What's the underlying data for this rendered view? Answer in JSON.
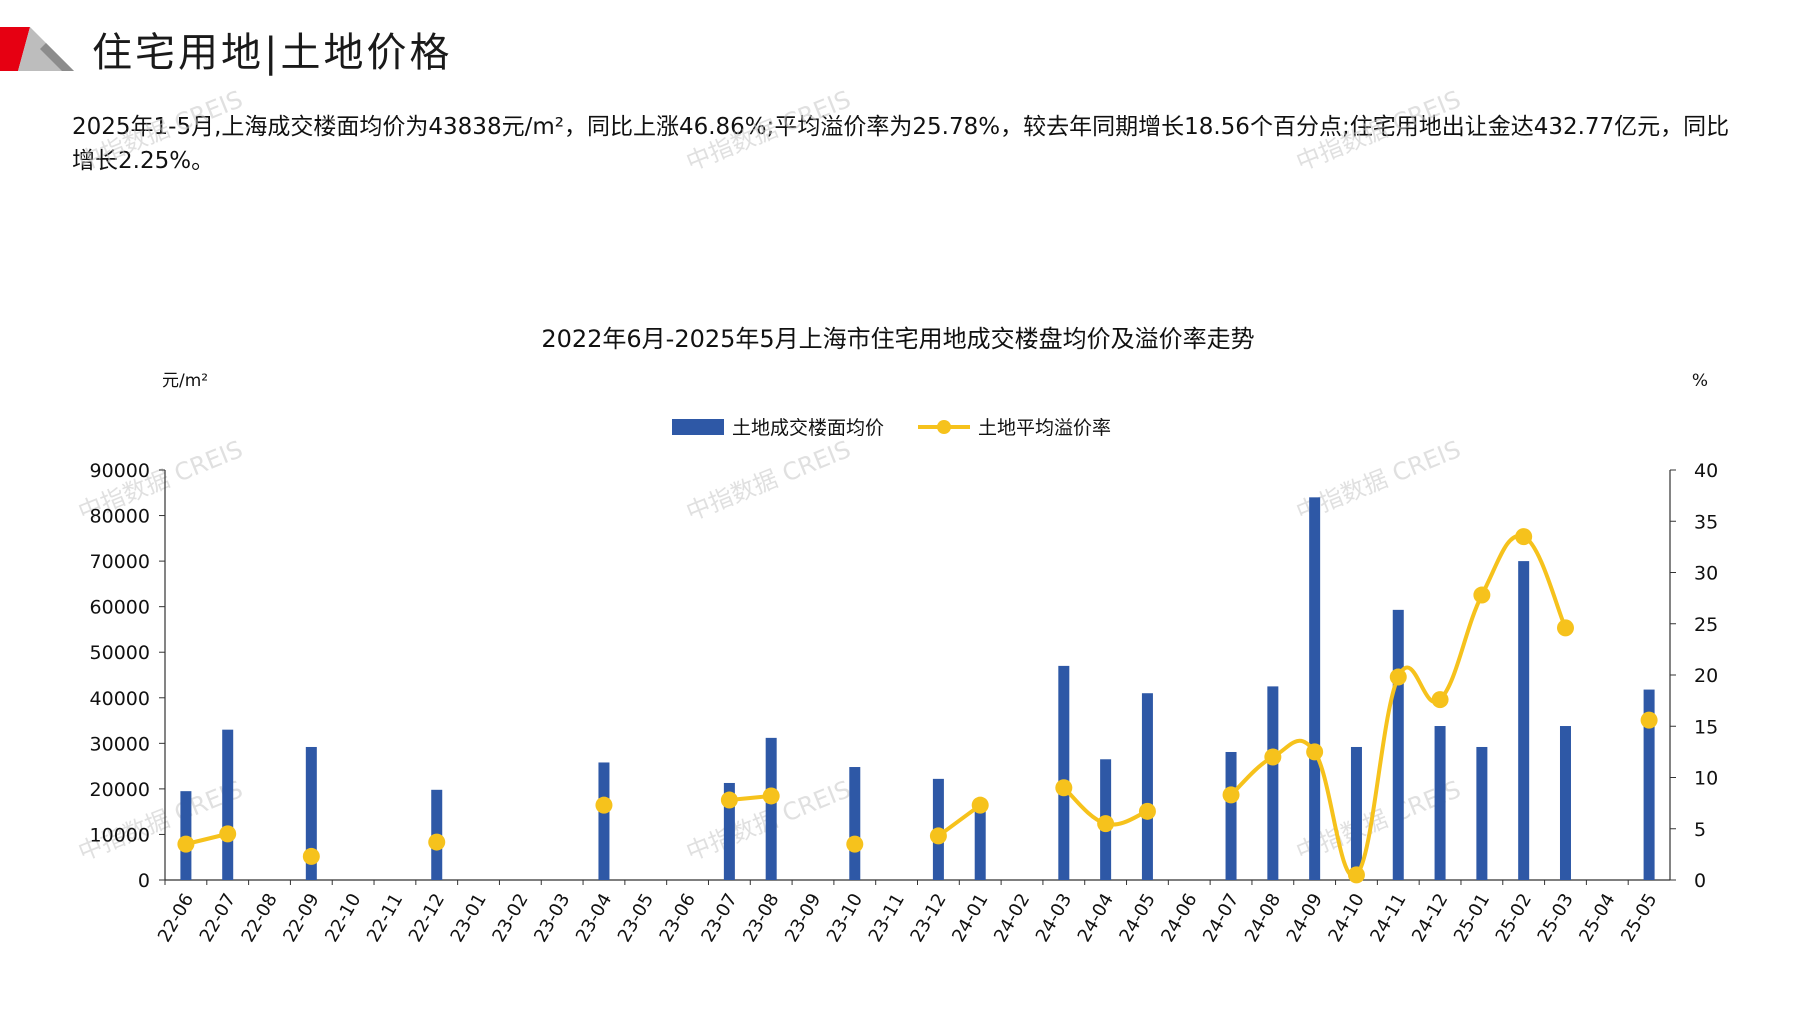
{
  "page": {
    "title": "住宅用地|土地价格",
    "summary": "2025年1-5月,上海成交楼面均价为43838元/m²，同比上涨46.86%;平均溢价率为25.78%，较去年同期增长18.56个百分点;住宅用地出让金达432.77亿元，同比增长2.25%。",
    "watermark": "中指数据 CREIS",
    "colors": {
      "bar": "#2E58A6",
      "line": "#F6C21C",
      "logo_red": "#E60012",
      "logo_gray": "#8C8C8C"
    }
  },
  "chart_data": {
    "type": "bar+line",
    "title": "2022年6月-2025年5月上海市住宅用地成交楼盘均价及溢价率走势",
    "y_left_unit": "元/m²",
    "y_right_unit": "%",
    "y_left_lim": [
      0,
      90000
    ],
    "y_left_ticks": [
      "0",
      "10000",
      "20000",
      "30000",
      "40000",
      "50000",
      "60000",
      "70000",
      "80000",
      "90000"
    ],
    "y_right_lim": [
      0,
      40
    ],
    "y_right_ticks": [
      "0",
      "5",
      "10",
      "15",
      "20",
      "25",
      "30",
      "35",
      "40"
    ],
    "legend_position": "top-center",
    "categories": [
      "22-06",
      "22-07",
      "22-08",
      "22-09",
      "22-10",
      "22-11",
      "22-12",
      "23-01",
      "23-02",
      "23-03",
      "23-04",
      "23-05",
      "23-06",
      "23-07",
      "23-08",
      "23-09",
      "23-10",
      "23-11",
      "23-12",
      "24-01",
      "24-02",
      "24-03",
      "24-04",
      "24-05",
      "24-06",
      "24-07",
      "24-08",
      "24-09",
      "24-10",
      "24-11",
      "24-12",
      "25-01",
      "25-02",
      "25-03",
      "25-04",
      "25-05"
    ],
    "series": [
      {
        "name": "土地成交楼面均价",
        "kind": "bar",
        "axis": "left",
        "values": [
          19500,
          33000,
          null,
          29200,
          null,
          null,
          19800,
          null,
          null,
          null,
          25800,
          null,
          null,
          21300,
          31200,
          null,
          24800,
          null,
          22200,
          15500,
          null,
          47000,
          26500,
          41000,
          null,
          28100,
          42500,
          84000,
          29200,
          59300,
          33800,
          29200,
          70000,
          33800,
          null,
          41800
        ]
      },
      {
        "name": "土地平均溢价率",
        "kind": "line",
        "axis": "right",
        "values": [
          3.5,
          4.5,
          null,
          2.3,
          null,
          null,
          3.7,
          null,
          null,
          null,
          7.3,
          null,
          null,
          7.8,
          8.2,
          null,
          3.5,
          null,
          4.3,
          7.3,
          null,
          9.0,
          5.5,
          6.7,
          null,
          8.3,
          12.0,
          12.5,
          0.5,
          19.8,
          17.6,
          27.8,
          33.5,
          24.6,
          null,
          15.6
        ]
      }
    ]
  }
}
